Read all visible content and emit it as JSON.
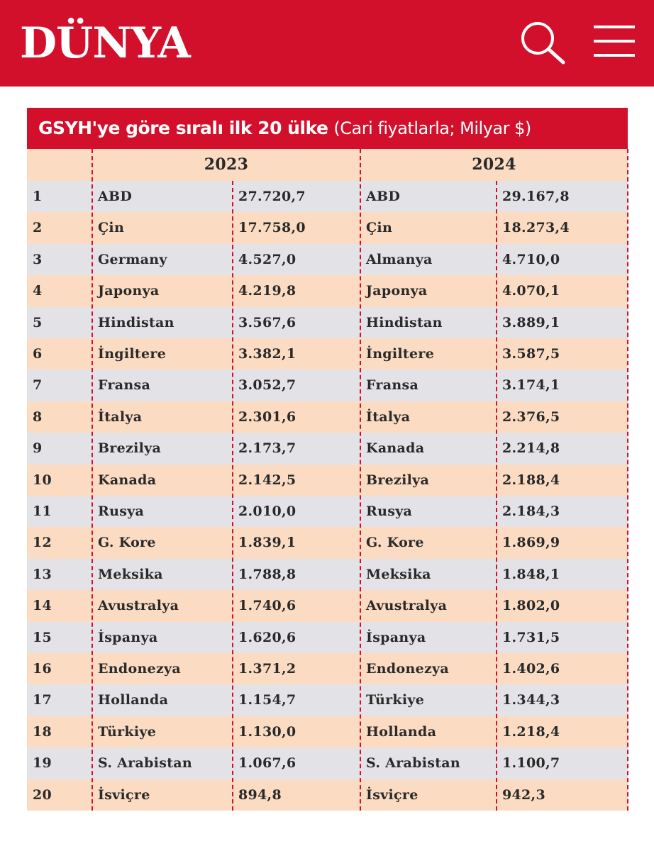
{
  "header": {
    "logo": "DÜNYA"
  },
  "table": {
    "title": "GSYH'ye göre sıralı ilk 20 ülke",
    "subtitle": "(Cari fiyatlarla; Milyar $)",
    "years": [
      "2023",
      "2024"
    ],
    "rows": [
      [
        1,
        "ABD",
        "27.720,7",
        "ABD",
        "29.167,8"
      ],
      [
        2,
        "Çin",
        "17.758,0",
        "Çin",
        "18.273,4"
      ],
      [
        3,
        "Germany",
        "4.527,0",
        "Almanya",
        "4.710,0"
      ],
      [
        4,
        "Japonya",
        "4.219,8",
        "Japonya",
        "4.070,1"
      ],
      [
        5,
        "Hindistan",
        "3.567,6",
        "Hindistan",
        "3.889,1"
      ],
      [
        6,
        "İngiltere",
        "3.382,1",
        "İngiltere",
        "3.587,5"
      ],
      [
        7,
        "Fransa",
        "3.052,7",
        "Fransa",
        "3.174,1"
      ],
      [
        8,
        "İtalya",
        "2.301,6",
        "İtalya",
        "2.376,5"
      ],
      [
        9,
        "Brezilya",
        "2.173,7",
        "Kanada",
        "2.214,8"
      ],
      [
        10,
        "Kanada",
        "2.142,5",
        "Brezilya",
        "2.188,4"
      ],
      [
        11,
        "Rusya",
        "2.010,0",
        "Rusya",
        "2.184,3"
      ],
      [
        12,
        "G. Kore",
        "1.839,1",
        "G. Kore",
        "1.869,9"
      ],
      [
        13,
        "Meksika",
        "1.788,8",
        "Meksika",
        "1.848,1"
      ],
      [
        14,
        "Avustralya",
        "1.740,6",
        "Avustralya",
        "1.802,0"
      ],
      [
        15,
        "İspanya",
        "1.620,6",
        "İspanya",
        "1.731,5"
      ],
      [
        16,
        "Endonezya",
        "1.371,2",
        "Endonezya",
        "1.402,6"
      ],
      [
        17,
        "Hollanda",
        "1.154,7",
        "Türkiye",
        "1.344,3"
      ],
      [
        18,
        "Türkiye",
        "1.130,0",
        "Hollanda",
        "1.218,4"
      ],
      [
        19,
        "S. Arabistan",
        "1.067,6",
        "S. Arabistan",
        "1.100,7"
      ],
      [
        20,
        "İsviçre",
        "894,8",
        "İsviçre",
        "942,3"
      ]
    ]
  }
}
